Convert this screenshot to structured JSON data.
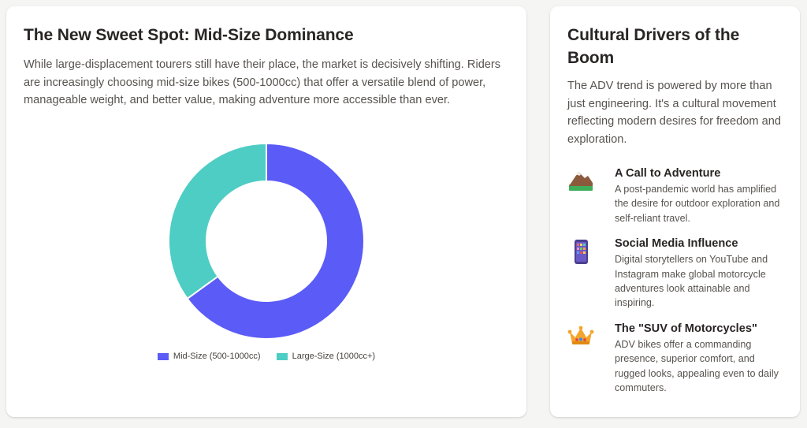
{
  "left_card": {
    "title": "The New Sweet Spot: Mid-Size Dominance",
    "description": "While large-displacement tourers still have their place, the market is decisively shifting. Riders are increasingly choosing mid-size bikes (500-1000cc) that offer a versatile blend of power, manageable weight, and better value, making adventure more accessible than ever."
  },
  "chart_data": {
    "type": "pie",
    "variant": "doughnut",
    "categories": [
      "Mid-Size (500-1000cc)",
      "Large-Size (1000cc+)"
    ],
    "values": [
      65,
      35
    ],
    "colors": [
      "#5b5bf7",
      "#4ecdc4"
    ],
    "legend": "bottom"
  },
  "right_card": {
    "title": "Cultural Drivers of the Boom",
    "description": "The ADV trend is powered by more than just engineering. It's a cultural movement reflecting modern desires for freedom and exploration.",
    "items": [
      {
        "icon": "mountain-icon",
        "title": "A Call to Adventure",
        "text": "A post-pandemic world has amplified the desire for outdoor exploration and self-reliant travel."
      },
      {
        "icon": "phone-apps-icon",
        "title": "Social Media Influence",
        "text": "Digital storytellers on YouTube and Instagram make global motorcycle adventures look attainable and inspiring."
      },
      {
        "icon": "crown-icon",
        "title": "The \"SUV of Motorcycles\"",
        "text": "ADV bikes offer a commanding presence, superior comfort, and rugged looks, appealing even to daily commuters."
      }
    ]
  }
}
